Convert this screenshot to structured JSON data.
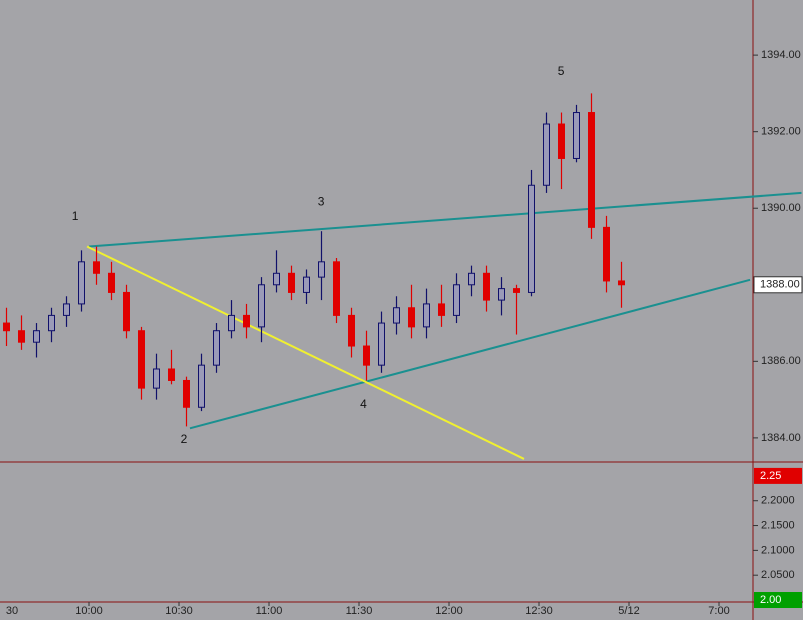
{
  "chart_data": [
    {
      "type": "candlestick",
      "open": [
        1387.0,
        1386.8,
        1386.5,
        1386.8,
        1387.2,
        1387.5,
        1388.6,
        1388.3,
        1387.8,
        1386.8,
        1385.3,
        1385.8,
        1385.5,
        1384.8,
        1385.9,
        1386.8,
        1387.2,
        1386.9,
        1388.0,
        1388.3,
        1387.8,
        1388.2,
        1388.6,
        1387.2,
        1386.4,
        1385.9,
        1387.0,
        1387.4,
        1386.9,
        1387.5,
        1387.2,
        1388.0,
        1388.3,
        1387.6,
        1387.9,
        1387.8,
        1390.6,
        1392.2,
        1391.3,
        1392.5,
        1389.5,
        1388.1
      ],
      "high": [
        1387.4,
        1387.2,
        1387.0,
        1387.4,
        1387.7,
        1388.9,
        1389.0,
        1388.6,
        1388.0,
        1386.9,
        1386.2,
        1386.3,
        1385.6,
        1386.2,
        1387.0,
        1387.6,
        1387.5,
        1388.2,
        1388.9,
        1388.5,
        1388.4,
        1389.4,
        1388.7,
        1387.4,
        1386.8,
        1387.3,
        1387.7,
        1388.0,
        1387.9,
        1388.0,
        1388.3,
        1388.5,
        1388.5,
        1388.2,
        1388.0,
        1391.0,
        1392.5,
        1392.5,
        1392.7,
        1393.0,
        1389.8,
        1388.6
      ],
      "low": [
        1386.4,
        1386.3,
        1386.1,
        1386.5,
        1386.9,
        1387.3,
        1388.0,
        1387.6,
        1386.6,
        1385.0,
        1385.0,
        1385.4,
        1384.3,
        1384.7,
        1385.7,
        1386.6,
        1386.6,
        1386.5,
        1387.8,
        1387.6,
        1387.5,
        1387.6,
        1387.0,
        1386.1,
        1385.5,
        1385.7,
        1386.7,
        1386.6,
        1386.6,
        1386.9,
        1387.0,
        1387.7,
        1387.3,
        1387.2,
        1386.7,
        1387.7,
        1390.4,
        1390.5,
        1391.2,
        1389.2,
        1387.8,
        1387.4
      ],
      "close": [
        1386.8,
        1386.5,
        1386.8,
        1387.2,
        1387.5,
        1388.6,
        1388.3,
        1387.8,
        1386.8,
        1385.3,
        1385.8,
        1385.5,
        1384.8,
        1385.9,
        1386.8,
        1387.2,
        1386.9,
        1388.0,
        1388.3,
        1387.8,
        1388.2,
        1388.6,
        1387.2,
        1386.4,
        1385.9,
        1387.0,
        1387.4,
        1386.9,
        1387.5,
        1387.2,
        1388.0,
        1388.3,
        1387.6,
        1387.9,
        1387.8,
        1390.6,
        1392.2,
        1391.3,
        1392.5,
        1389.5,
        1388.1,
        1388.0
      ],
      "up_color": "#10106a",
      "down_color": "#e00000",
      "ylim": [
        1383.37,
        1395.44
      ],
      "yticks": [
        {
          "value": 1384,
          "label": "1384.00"
        },
        {
          "value": 1386,
          "label": "1386.00"
        },
        {
          "value": 1388,
          "label": "1388.00"
        },
        {
          "value": 1390,
          "label": "1390.00"
        },
        {
          "value": 1392,
          "label": "1392.00"
        },
        {
          "value": 1394,
          "label": "1394.00"
        }
      ],
      "last": {
        "value": 1388,
        "label": "1388.00"
      },
      "xtick_labels": [
        "30",
        "10:00",
        "10:30",
        "11:00",
        "11:30",
        "12:00",
        "12:30",
        "5/12",
        "7:00"
      ],
      "lines": [
        {
          "color": "#1a9090",
          "x": [
            5.5,
            53.0
          ],
          "y": [
            1389.0,
            1390.4
          ]
        },
        {
          "color": "#1a9090",
          "x": [
            12.23,
            49.57
          ],
          "y": [
            1384.25,
            1388.13
          ]
        },
        {
          "color": "#f0f030",
          "x": [
            5.37,
            34.5
          ],
          "y": [
            1389.0,
            1383.45
          ]
        }
      ],
      "annotations": [
        {
          "text": "1",
          "x": 4.57,
          "y": 1389.77
        },
        {
          "text": "2",
          "x": 11.83,
          "y": 1383.95
        },
        {
          "text": "3",
          "x": 20.97,
          "y": 1390.16
        },
        {
          "text": "4",
          "x": 23.8,
          "y": 1384.86
        },
        {
          "text": "5",
          "x": 36.97,
          "y": 1393.56
        }
      ]
    },
    {
      "type": "indicator",
      "ylim": [
        1.996,
        2.278
      ],
      "yticks": [
        {
          "value": 2.2,
          "label": "2.2000"
        },
        {
          "value": 2.15,
          "label": "2.1500"
        },
        {
          "value": 2.1,
          "label": "2.1000"
        },
        {
          "value": 2.05,
          "label": "2.0500"
        }
      ],
      "markers": [
        {
          "value": 2.25,
          "label": "2.25",
          "color": "#e00000"
        },
        {
          "value": 2,
          "label": "2.00",
          "color": "#00a000"
        }
      ]
    }
  ]
}
